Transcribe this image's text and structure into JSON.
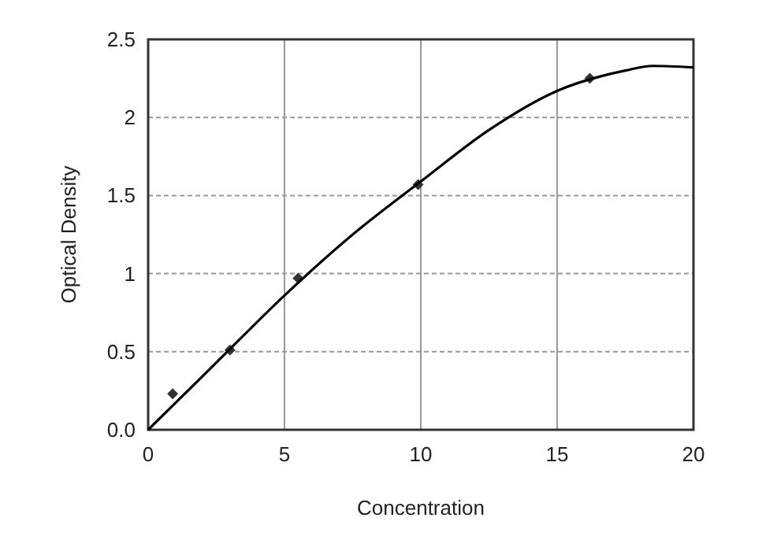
{
  "chart_data": {
    "type": "scatter",
    "xlabel": "Concentration",
    "ylabel": "Optical Density",
    "xlim": [
      0,
      20
    ],
    "xticks": [
      0,
      5,
      10,
      15,
      20
    ],
    "ylim": [
      0,
      2.5
    ],
    "yticks": [
      {
        "value": 0,
        "label": "0.0"
      },
      0.5,
      1,
      1.5,
      2,
      2.5
    ],
    "grid": true,
    "series": [
      {
        "color": "#333333",
        "marker": "diamond",
        "x": [
          0.9,
          3,
          5.5,
          9.9,
          16.2
        ],
        "values": [
          0.23,
          0.51,
          0.97,
          1.57,
          2.25
        ]
      },
      {
        "type": "line",
        "color": "#000000",
        "marker": "none",
        "line_style": "solid",
        "x": [
          0,
          2.5,
          5,
          7.5,
          10,
          12.5,
          15,
          17.5,
          18.5,
          20
        ],
        "values": [
          0,
          0.43,
          0.86,
          1.25,
          1.59,
          1.92,
          2.17,
          2.3,
          2.33,
          2.32
        ]
      }
    ]
  }
}
